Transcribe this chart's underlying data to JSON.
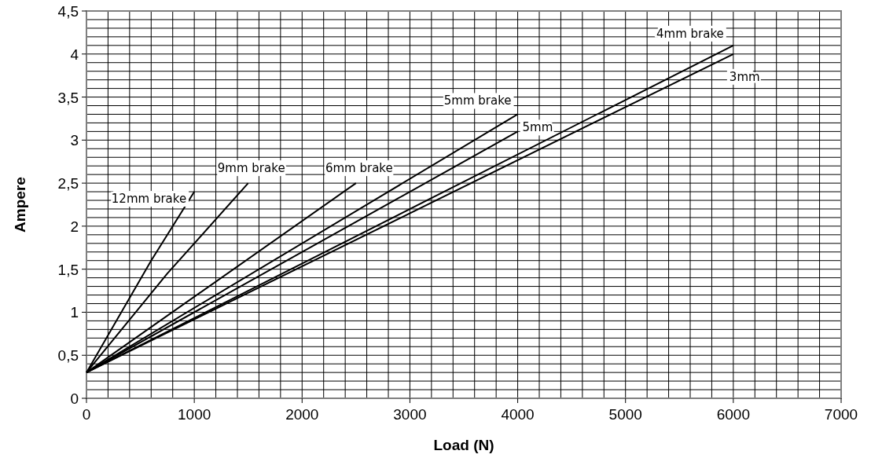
{
  "chart_data": {
    "type": "line",
    "xlabel": "Load (N)",
    "ylabel": "Ampere",
    "xlim": [
      0,
      7000
    ],
    "ylim": [
      0,
      4.5
    ],
    "xticks": [
      0,
      {
        "value": 200,
        "label": null
      },
      {
        "value": 400,
        "label": null
      },
      {
        "value": 600,
        "label": null
      },
      {
        "value": 800,
        "label": null
      },
      1000,
      {
        "value": 1200,
        "label": null
      },
      {
        "value": 1400,
        "label": null
      },
      {
        "value": 1600,
        "label": null
      },
      {
        "value": 1800,
        "label": null
      },
      2000,
      {
        "value": 2200,
        "label": null
      },
      {
        "value": 2400,
        "label": null
      },
      {
        "value": 2600,
        "label": null
      },
      {
        "value": 2800,
        "label": null
      },
      3000,
      {
        "value": 3200,
        "label": null
      },
      {
        "value": 3400,
        "label": null
      },
      {
        "value": 3600,
        "label": null
      },
      {
        "value": 3800,
        "label": null
      },
      4000,
      {
        "value": 4200,
        "label": null
      },
      {
        "value": 4400,
        "label": null
      },
      {
        "value": 4600,
        "label": null
      },
      {
        "value": 4800,
        "label": null
      },
      5000,
      {
        "value": 5200,
        "label": null
      },
      {
        "value": 5400,
        "label": null
      },
      {
        "value": 5600,
        "label": null
      },
      {
        "value": 5800,
        "label": null
      },
      6000,
      {
        "value": 6200,
        "label": null
      },
      {
        "value": 6400,
        "label": null
      },
      {
        "value": 6600,
        "label": null
      },
      {
        "value": 6800,
        "label": null
      },
      7000
    ],
    "yticks": [
      0,
      {
        "value": 0.1,
        "label": null
      },
      {
        "value": 0.2,
        "label": null
      },
      {
        "value": 0.3,
        "label": null
      },
      {
        "value": 0.4,
        "label": null
      },
      {
        "value": 0.5,
        "label": "0,5"
      },
      {
        "value": 0.6,
        "label": null
      },
      {
        "value": 0.7,
        "label": null
      },
      {
        "value": 0.8,
        "label": null
      },
      {
        "value": 0.9,
        "label": null
      },
      1,
      {
        "value": 1.1,
        "label": null
      },
      {
        "value": 1.2,
        "label": null
      },
      {
        "value": 1.3,
        "label": null
      },
      {
        "value": 1.4,
        "label": null
      },
      {
        "value": 1.5,
        "label": "1,5"
      },
      {
        "value": 1.6,
        "label": null
      },
      {
        "value": 1.7,
        "label": null
      },
      {
        "value": 1.8,
        "label": null
      },
      {
        "value": 1.9,
        "label": null
      },
      2,
      {
        "value": 2.1,
        "label": null
      },
      {
        "value": 2.2,
        "label": null
      },
      {
        "value": 2.3,
        "label": null
      },
      {
        "value": 2.4,
        "label": null
      },
      {
        "value": 2.5,
        "label": "2,5"
      },
      {
        "value": 2.6,
        "label": null
      },
      {
        "value": 2.7,
        "label": null
      },
      {
        "value": 2.8,
        "label": null
      },
      {
        "value": 2.9,
        "label": null
      },
      3,
      {
        "value": 3.1,
        "label": null
      },
      {
        "value": 3.2,
        "label": null
      },
      {
        "value": 3.3,
        "label": null
      },
      {
        "value": 3.4,
        "label": null
      },
      {
        "value": 3.5,
        "label": "3,5"
      },
      {
        "value": 3.6,
        "label": null
      },
      {
        "value": 3.7,
        "label": null
      },
      {
        "value": 3.8,
        "label": null
      },
      {
        "value": 3.9,
        "label": null
      },
      4,
      {
        "value": 4.1,
        "label": null
      },
      {
        "value": 4.2,
        "label": null
      },
      {
        "value": 4.3,
        "label": null
      },
      {
        "value": 4.4,
        "label": null
      },
      {
        "value": 4.5,
        "label": "4,5"
      }
    ],
    "grid": true,
    "marker": "none",
    "line_style": "solid",
    "series": [
      {
        "name": "12mm brake",
        "color": "#000000",
        "x": [
          0,
          600,
          1000
        ],
        "values": [
          0.3,
          1.6,
          2.4
        ]
      },
      {
        "name": "9mm brake",
        "color": "#000000",
        "x": [
          0,
          750,
          1500
        ],
        "values": [
          0.3,
          1.45,
          2.5
        ]
      },
      {
        "name": "6mm brake",
        "color": "#000000",
        "x": [
          0,
          2500
        ],
        "values": [
          0.3,
          2.5
        ]
      },
      {
        "name": "5mm brake",
        "color": "#000000",
        "x": [
          0,
          4000
        ],
        "values": [
          0.3,
          3.3
        ]
      },
      {
        "name": "5mm",
        "color": "#000000",
        "x": [
          0,
          4000
        ],
        "values": [
          0.3,
          3.1
        ]
      },
      {
        "name": "4mm brake",
        "color": "#000000",
        "x": [
          0,
          6000
        ],
        "values": [
          0.3,
          4.1
        ]
      },
      {
        "name": "3mm",
        "color": "#000000",
        "x": [
          0,
          6000
        ],
        "values": [
          0.3,
          4.0
        ]
      }
    ]
  }
}
